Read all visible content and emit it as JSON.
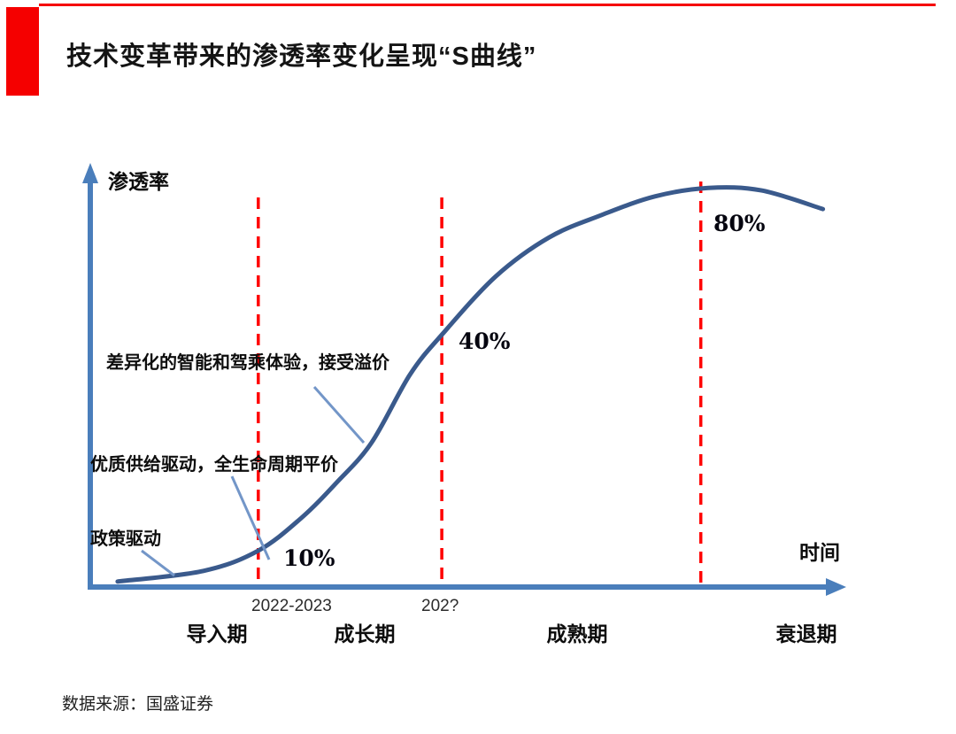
{
  "page": {
    "title": "技术变革带来的渗透率变化呈现“S曲线”",
    "source": "数据来源：国盛证券"
  },
  "colors": {
    "accent_red": "#f50000",
    "dash_red": "#ff0000",
    "curve_blue": "#3a5a8c",
    "axis_blue": "#4a7ebb",
    "leader_blue": "#7396c8"
  },
  "chart_data": {
    "type": "line",
    "subtype": "conceptual-s-curve",
    "title": "技术变革带来的渗透率变化呈现“S曲线”",
    "xlabel": "时间",
    "ylabel": "渗透率",
    "grid": false,
    "legend": false,
    "x_range_relative": [
      0,
      1
    ],
    "y_range_percent": [
      0,
      100
    ],
    "stages": [
      "导入期",
      "成长期",
      "成熟期",
      "衰退期"
    ],
    "milestones": [
      {
        "penetration": "10%",
        "time_label": "2022-2023",
        "x_rel": 0.227
      },
      {
        "penetration": "40%",
        "time_label": "202?",
        "x_rel": 0.475
      },
      {
        "penetration": "80%",
        "time_label": "",
        "x_rel": 0.825
      }
    ],
    "annotations": [
      {
        "label": "政策驱动",
        "stage": "导入期"
      },
      {
        "label": "优质供给驱动，全生命周期平价",
        "stage": "导入期→成长期"
      },
      {
        "label": "差异化的智能和驾乘体验，接受溢价",
        "stage": "成长期"
      }
    ],
    "curve_points_rel": [
      [
        0.037,
        0.013
      ],
      [
        0.153,
        0.038
      ],
      [
        0.227,
        0.086
      ],
      [
        0.285,
        0.163
      ],
      [
        0.333,
        0.247
      ],
      [
        0.38,
        0.341
      ],
      [
        0.432,
        0.502
      ],
      [
        0.476,
        0.598
      ],
      [
        0.548,
        0.734
      ],
      [
        0.62,
        0.826
      ],
      [
        0.691,
        0.879
      ],
      [
        0.763,
        0.923
      ],
      [
        0.835,
        0.943
      ],
      [
        0.907,
        0.937
      ],
      [
        0.99,
        0.893
      ]
    ]
  }
}
